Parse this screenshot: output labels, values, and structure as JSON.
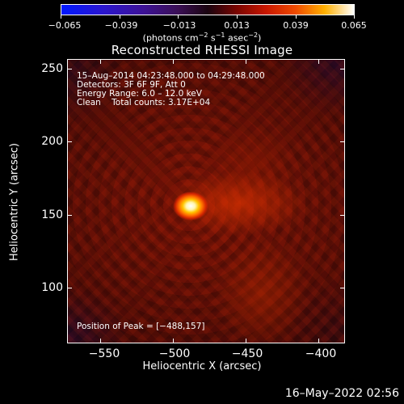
{
  "colorbar": {
    "labels": [
      "−0.065",
      "−0.039",
      "−0.013",
      "0.013",
      "0.039",
      "0.065"
    ],
    "units_prefix": "(photons cm",
    "units_exp1": "−2",
    "units_mid": " s",
    "units_exp2": "−1",
    "units_mid2": " asec",
    "units_exp3": "−2",
    "units_suffix": ")"
  },
  "title": "Reconstructed RHESSI Image",
  "annotations": {
    "line1": "15–Aug–2014 04:23:48.000 to 04:29:48.000",
    "line2": "Detectors: 3F 6F 9F, Att 0",
    "line3": "Energy Range: 6.0 – 12.0 keV",
    "line4": "Clean    Total counts: 3.17E+04",
    "peak": "Position of Peak = [−488,157]"
  },
  "axes": {
    "y_label": "Heliocentric Y (arcsec)",
    "x_label": "Heliocentric X (arcsec)",
    "y_ticks": [
      "250",
      "200",
      "150",
      "100"
    ],
    "x_ticks": [
      "−550",
      "−500",
      "−450",
      "−400"
    ]
  },
  "footer": {
    "date": "16–May–2022 02:56"
  }
}
